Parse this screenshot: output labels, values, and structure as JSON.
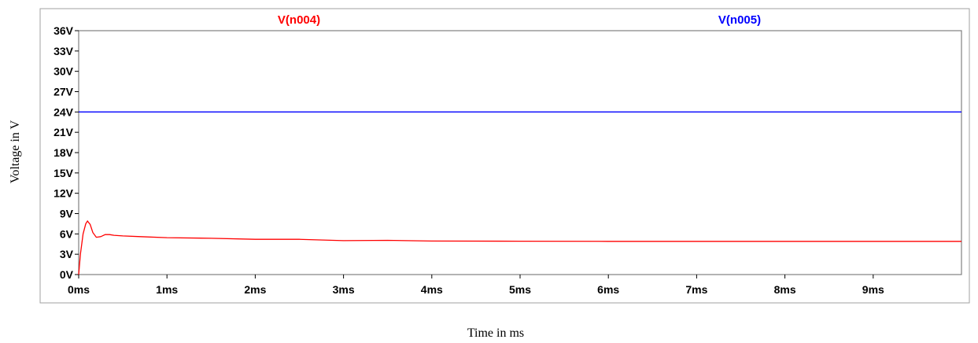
{
  "chart_data": {
    "type": "line",
    "xlabel": "Time in ms",
    "ylabel": "Voltage in V",
    "xlim": [
      0,
      10
    ],
    "ylim": [
      0,
      36
    ],
    "x_ticks": [
      0,
      1,
      2,
      3,
      4,
      5,
      6,
      7,
      8,
      9
    ],
    "x_tick_labels": [
      "0ms",
      "1ms",
      "2ms",
      "3ms",
      "4ms",
      "5ms",
      "6ms",
      "7ms",
      "8ms",
      "9ms"
    ],
    "y_ticks": [
      0,
      3,
      6,
      9,
      12,
      15,
      18,
      21,
      24,
      27,
      30,
      33,
      36
    ],
    "y_tick_labels": [
      "0V",
      "3V",
      "6V",
      "9V",
      "12V",
      "15V",
      "18V",
      "21V",
      "24V",
      "27V",
      "30V",
      "33V",
      "36V"
    ],
    "grid": false,
    "legend_position": "top",
    "series": [
      {
        "name": "V(n004)",
        "color": "#ff0000",
        "x": [
          0,
          0.02,
          0.05,
          0.08,
          0.1,
          0.13,
          0.16,
          0.2,
          0.25,
          0.3,
          0.35,
          0.4,
          0.5,
          0.7,
          1.0,
          1.5,
          2.0,
          2.5,
          3.0,
          3.5,
          4.0,
          5.0,
          6.0,
          7.0,
          8.0,
          9.0,
          10.0
        ],
        "y": [
          0,
          3.0,
          6.0,
          7.5,
          7.9,
          7.4,
          6.2,
          5.5,
          5.6,
          5.9,
          5.9,
          5.8,
          5.7,
          5.6,
          5.45,
          5.35,
          5.2,
          5.2,
          5.0,
          5.05,
          4.95,
          4.92,
          4.9,
          4.9,
          4.9,
          4.9,
          4.9
        ]
      },
      {
        "name": "V(n005)",
        "color": "#0000ff",
        "x": [
          0,
          10
        ],
        "y": [
          24,
          24
        ]
      }
    ]
  }
}
